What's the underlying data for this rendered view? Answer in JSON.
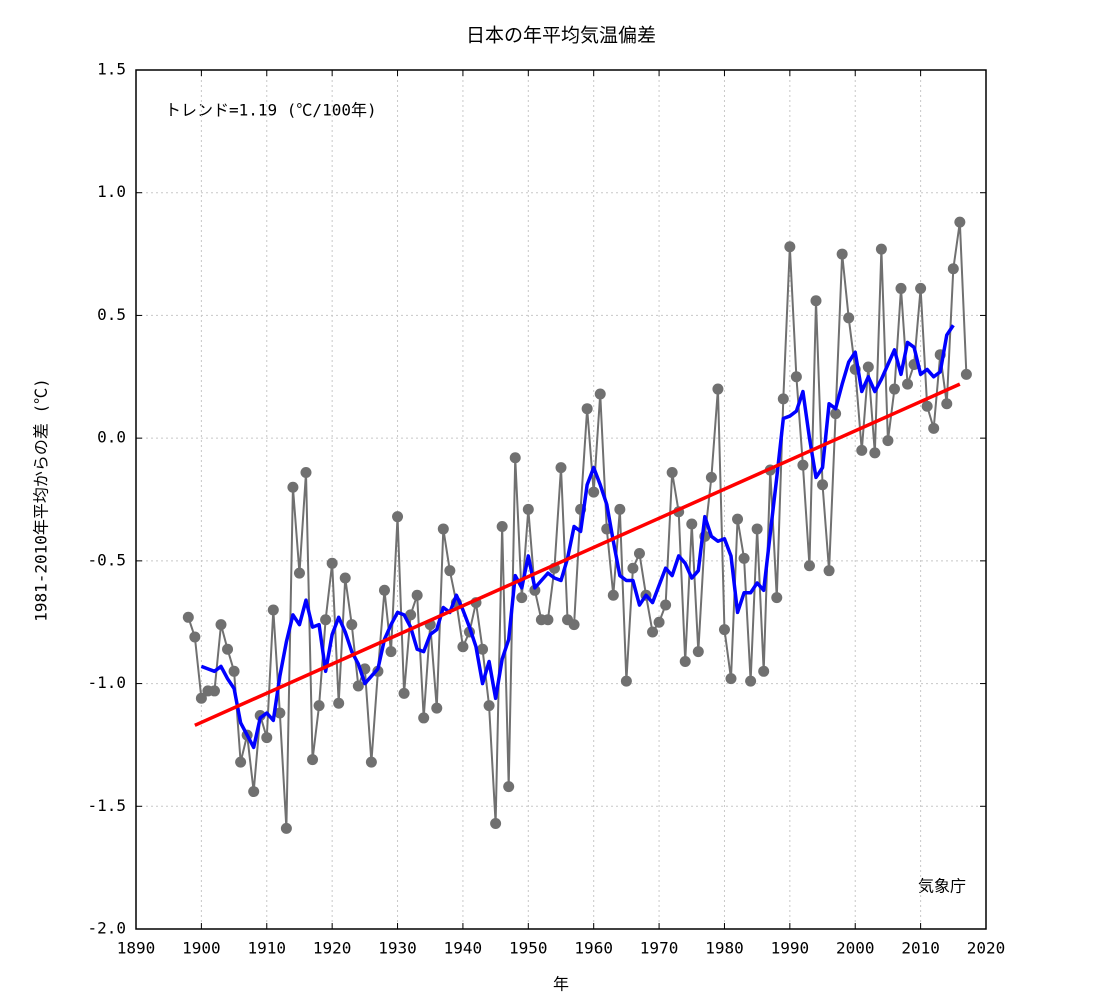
{
  "chart_data": {
    "type": "line",
    "title": "日本の年平均気温偏差",
    "ylabel": "1981-2010年平均からの差 (℃)",
    "xlabel": "年",
    "annotations": [
      "トレンド=1.19 (℃/100年)",
      "気象庁"
    ],
    "xlim": [
      1890,
      2020
    ],
    "xticks": [
      1890,
      1900,
      1910,
      1920,
      1930,
      1940,
      1950,
      1960,
      1970,
      1980,
      1990,
      2000,
      2010,
      2020
    ],
    "ylim": [
      -2.0,
      1.5
    ],
    "yticks": [
      {
        "value": -2,
        "label": "-2.0"
      },
      -1.5,
      {
        "value": -1,
        "label": "-1.0"
      },
      -0.5,
      {
        "value": 0,
        "label": "0.0"
      },
      0.5,
      {
        "value": 1,
        "label": "1.0"
      },
      1.5
    ],
    "grid": true,
    "series": [
      {
        "color": "#707070",
        "markers": true,
        "x": [
          1898,
          1899,
          1900,
          1901,
          1902,
          1903,
          1904,
          1905,
          1906,
          1907,
          1908,
          1909,
          1910,
          1911,
          1912,
          1913,
          1914,
          1915,
          1916,
          1917,
          1918,
          1919,
          1920,
          1921,
          1922,
          1923,
          1924,
          1925,
          1926,
          1927,
          1928,
          1929,
          1930,
          1931,
          1932,
          1933,
          1934,
          1935,
          1936,
          1937,
          1938,
          1939,
          1940,
          1941,
          1942,
          1943,
          1944,
          1945,
          1946,
          1947,
          1948,
          1949,
          1950,
          1951,
          1952,
          1953,
          1954,
          1955,
          1956,
          1957,
          1958,
          1959,
          1960,
          1961,
          1962,
          1963,
          1964,
          1965,
          1966,
          1967,
          1968,
          1969,
          1970,
          1971,
          1972,
          1973,
          1974,
          1975,
          1976,
          1977,
          1978,
          1979,
          1980,
          1981,
          1982,
          1983,
          1984,
          1985,
          1986,
          1987,
          1988,
          1989,
          1990,
          1991,
          1992,
          1993,
          1994,
          1995,
          1996,
          1997,
          1998,
          1999,
          2000,
          2001,
          2002,
          2003,
          2004,
          2005,
          2006,
          2007,
          2008,
          2009,
          2010,
          2011,
          2012,
          2013,
          2014,
          2015,
          2016,
          2017
        ],
        "values": [
          -0.73,
          -0.81,
          -1.06,
          -1.03,
          -1.03,
          -0.76,
          -0.86,
          -0.95,
          -1.32,
          -1.21,
          -1.44,
          -1.13,
          -1.22,
          -0.7,
          -1.12,
          -1.59,
          -0.2,
          -0.55,
          -0.14,
          -1.31,
          -1.09,
          -0.74,
          -0.51,
          -1.08,
          -0.57,
          -0.76,
          -1.01,
          -0.94,
          -1.32,
          -0.95,
          -0.62,
          -0.87,
          -0.32,
          -1.04,
          -0.72,
          -0.64,
          -1.14,
          -0.76,
          -1.1,
          -0.37,
          -0.54,
          -0.67,
          -0.85,
          -0.79,
          -0.67,
          -0.86,
          -1.09,
          -1.57,
          -0.36,
          -1.42,
          -0.08,
          -0.65,
          -0.29,
          -0.62,
          -0.74,
          -0.74,
          -0.53,
          -0.12,
          -0.74,
          -0.76,
          -0.29,
          0.12,
          -0.22,
          0.18,
          -0.37,
          -0.64,
          -0.29,
          -0.99,
          -0.53,
          -0.47,
          -0.64,
          -0.79,
          -0.75,
          -0.68,
          -0.14,
          -0.3,
          -0.91,
          -0.35,
          -0.87,
          -0.4,
          -0.16,
          0.2,
          -0.78,
          -0.98,
          -0.33,
          -0.49,
          -0.99,
          -0.37,
          -0.95,
          -0.13,
          -0.65,
          0.16,
          0.78,
          0.25,
          -0.11,
          -0.52,
          0.56,
          -0.19,
          -0.54,
          0.1,
          0.75,
          0.49,
          0.28,
          -0.05,
          0.29,
          -0.06,
          0.77,
          -0.01,
          0.2,
          0.61,
          0.22,
          0.3,
          0.61,
          0.13,
          0.04,
          0.34,
          0.14,
          0.69,
          0.88,
          0.26
        ]
      },
      {
        "color": "#0000ff",
        "markers": false,
        "x": [
          1900,
          1901,
          1902,
          1903,
          1904,
          1905,
          1906,
          1907,
          1908,
          1909,
          1910,
          1911,
          1912,
          1913,
          1914,
          1915,
          1916,
          1917,
          1918,
          1919,
          1920,
          1921,
          1922,
          1923,
          1924,
          1925,
          1926,
          1927,
          1928,
          1929,
          1930,
          1931,
          1932,
          1933,
          1934,
          1935,
          1936,
          1937,
          1938,
          1939,
          1940,
          1941,
          1942,
          1943,
          1944,
          1945,
          1946,
          1947,
          1948,
          1949,
          1950,
          1951,
          1952,
          1953,
          1954,
          1955,
          1956,
          1957,
          1958,
          1959,
          1960,
          1961,
          1962,
          1963,
          1964,
          1965,
          1966,
          1967,
          1968,
          1969,
          1970,
          1971,
          1972,
          1973,
          1974,
          1975,
          1976,
          1977,
          1978,
          1979,
          1980,
          1981,
          1982,
          1983,
          1984,
          1985,
          1986,
          1987,
          1988,
          1989,
          1990,
          1991,
          1992,
          1993,
          1994,
          1995,
          1996,
          1997,
          1998,
          1999,
          2000,
          2001,
          2002,
          2003,
          2004,
          2005,
          2006,
          2007,
          2008,
          2009,
          2010,
          2011,
          2012,
          2013,
          2014,
          2015
        ],
        "values": [
          -0.93,
          -0.94,
          -0.95,
          -0.93,
          -0.98,
          -1.02,
          -1.16,
          -1.21,
          -1.26,
          -1.14,
          -1.12,
          -1.15,
          -0.97,
          -0.83,
          -0.72,
          -0.76,
          -0.66,
          -0.77,
          -0.76,
          -0.95,
          -0.8,
          -0.73,
          -0.79,
          -0.87,
          -0.92,
          -1.0,
          -0.97,
          -0.94,
          -0.82,
          -0.76,
          -0.71,
          -0.72,
          -0.77,
          -0.86,
          -0.87,
          -0.8,
          -0.78,
          -0.69,
          -0.71,
          -0.64,
          -0.7,
          -0.77,
          -0.85,
          -1.0,
          -0.91,
          -1.06,
          -0.9,
          -0.82,
          -0.56,
          -0.61,
          -0.48,
          -0.61,
          -0.58,
          -0.55,
          -0.57,
          -0.58,
          -0.49,
          -0.36,
          -0.38,
          -0.19,
          -0.12,
          -0.19,
          -0.27,
          -0.42,
          -0.56,
          -0.58,
          -0.58,
          -0.68,
          -0.64,
          -0.67,
          -0.6,
          -0.53,
          -0.56,
          -0.48,
          -0.51,
          -0.57,
          -0.54,
          -0.32,
          -0.4,
          -0.42,
          -0.41,
          -0.48,
          -0.71,
          -0.63,
          -0.63,
          -0.59,
          -0.62,
          -0.39,
          -0.16,
          0.08,
          0.09,
          0.11,
          0.19,
          0.0,
          -0.16,
          -0.12,
          0.14,
          0.12,
          0.22,
          0.31,
          0.35,
          0.19,
          0.25,
          0.19,
          0.24,
          0.3,
          0.36,
          0.26,
          0.39,
          0.37,
          0.26,
          0.28,
          0.25,
          0.27,
          0.42,
          0.46
        ]
      },
      {
        "color": "#ff0000",
        "markers": false,
        "x": [
          1899,
          2016
        ],
        "values": [
          -1.17,
          0.22
        ]
      }
    ]
  }
}
